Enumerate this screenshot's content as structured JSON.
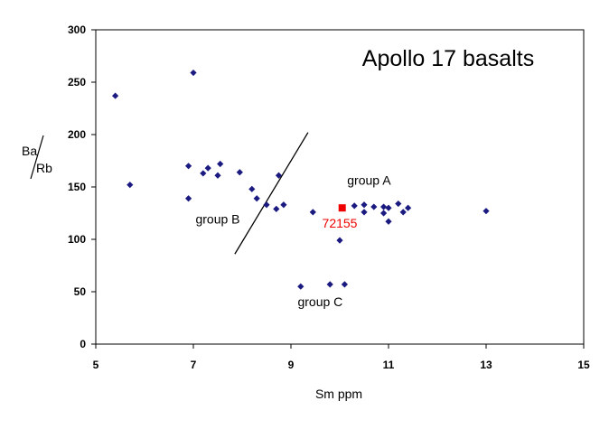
{
  "chart_data": {
    "type": "scatter",
    "title": "Apollo 17 basalts",
    "xlabel": "Sm ppm",
    "ylabel_numerator": "Ba",
    "ylabel_denominator": "Rb",
    "xlim": [
      5,
      15
    ],
    "ylim": [
      0,
      300
    ],
    "xticks": [
      "5",
      "7",
      "9",
      "11",
      "13",
      "15"
    ],
    "yticks": [
      "0",
      "50",
      "100",
      "150",
      "200",
      "250",
      "300"
    ],
    "grid": false,
    "series": [
      {
        "color": "#1a1a80",
        "marker": "diamond",
        "points": [
          [
            5.4,
            237
          ],
          [
            5.7,
            152
          ],
          [
            6.9,
            170
          ],
          [
            6.9,
            139
          ],
          [
            7.0,
            259
          ],
          [
            7.2,
            163
          ],
          [
            7.3,
            168
          ],
          [
            7.5,
            161
          ],
          [
            7.55,
            172
          ],
          [
            7.95,
            164
          ],
          [
            8.2,
            148
          ],
          [
            8.3,
            139
          ],
          [
            8.5,
            133
          ],
          [
            8.7,
            129
          ],
          [
            8.75,
            161
          ],
          [
            8.85,
            133
          ],
          [
            9.2,
            55
          ],
          [
            9.45,
            126
          ],
          [
            9.8,
            57
          ],
          [
            10.0,
            99
          ],
          [
            10.1,
            57
          ],
          [
            10.3,
            132
          ],
          [
            10.5,
            126
          ],
          [
            10.5,
            133
          ],
          [
            10.7,
            131
          ],
          [
            10.9,
            125
          ],
          [
            10.9,
            131
          ],
          [
            11.0,
            130
          ],
          [
            11.0,
            117
          ],
          [
            11.2,
            134
          ],
          [
            11.3,
            126
          ],
          [
            11.4,
            130
          ],
          [
            13.0,
            127
          ]
        ]
      },
      {
        "color": "#ee0000",
        "marker": "square",
        "points": [
          [
            10.05,
            130
          ]
        ]
      }
    ],
    "annotations": [
      {
        "text": "group A",
        "x": 10.6,
        "y": 152
      },
      {
        "text": "group B",
        "x": 7.5,
        "y": 115
      },
      {
        "text": "group C",
        "x": 9.6,
        "y": 36
      },
      {
        "text": "72155",
        "x": 10.0,
        "y": 111,
        "color": "#ee0000"
      }
    ],
    "divider_line": {
      "x": [
        7.85,
        9.35
      ],
      "y": [
        86,
        202
      ]
    }
  }
}
